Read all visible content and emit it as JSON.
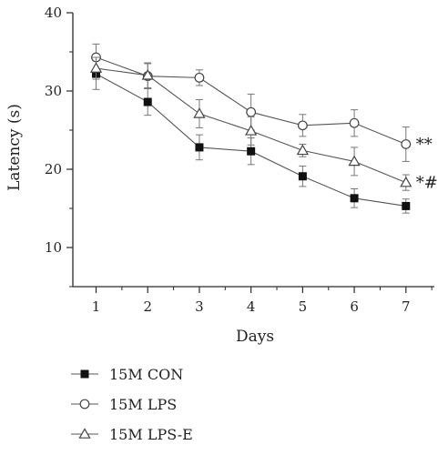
{
  "chart_data": {
    "type": "line",
    "title": "",
    "xlabel": "Days",
    "ylabel": "Latency (s)",
    "x": [
      1,
      2,
      3,
      4,
      5,
      6,
      7
    ],
    "xlim": [
      0.55,
      7.55
    ],
    "ylim": [
      5,
      40
    ],
    "yticks": [
      10,
      20,
      30,
      40
    ],
    "xticks": [
      1,
      2,
      3,
      4,
      5,
      6,
      7
    ],
    "grid": false,
    "legend_position": "bottom-left",
    "series": [
      {
        "name": "15M CON",
        "marker": "filled-square",
        "values": [
          32.2,
          28.6,
          22.8,
          22.3,
          19.1,
          16.3,
          15.3
        ],
        "errors": [
          2.0,
          1.7,
          1.6,
          1.7,
          1.3,
          1.2,
          0.9
        ]
      },
      {
        "name": "15M LPS",
        "marker": "open-circle",
        "values": [
          34.3,
          31.9,
          31.7,
          27.3,
          25.6,
          25.9,
          23.2
        ],
        "errors": [
          1.7,
          1.6,
          1.0,
          2.3,
          1.4,
          1.7,
          2.2
        ]
      },
      {
        "name": "15M LPS-E",
        "marker": "open-triangle",
        "values": [
          32.9,
          32.0,
          27.1,
          24.9,
          22.4,
          21.0,
          18.3
        ],
        "errors": [
          1.4,
          1.6,
          1.8,
          1.8,
          0.8,
          1.8,
          1.0
        ]
      }
    ],
    "annotations": [
      {
        "text": "**",
        "x": 7,
        "y": 23.2
      },
      {
        "text": "*#",
        "x": 7,
        "y": 18.3
      }
    ]
  }
}
